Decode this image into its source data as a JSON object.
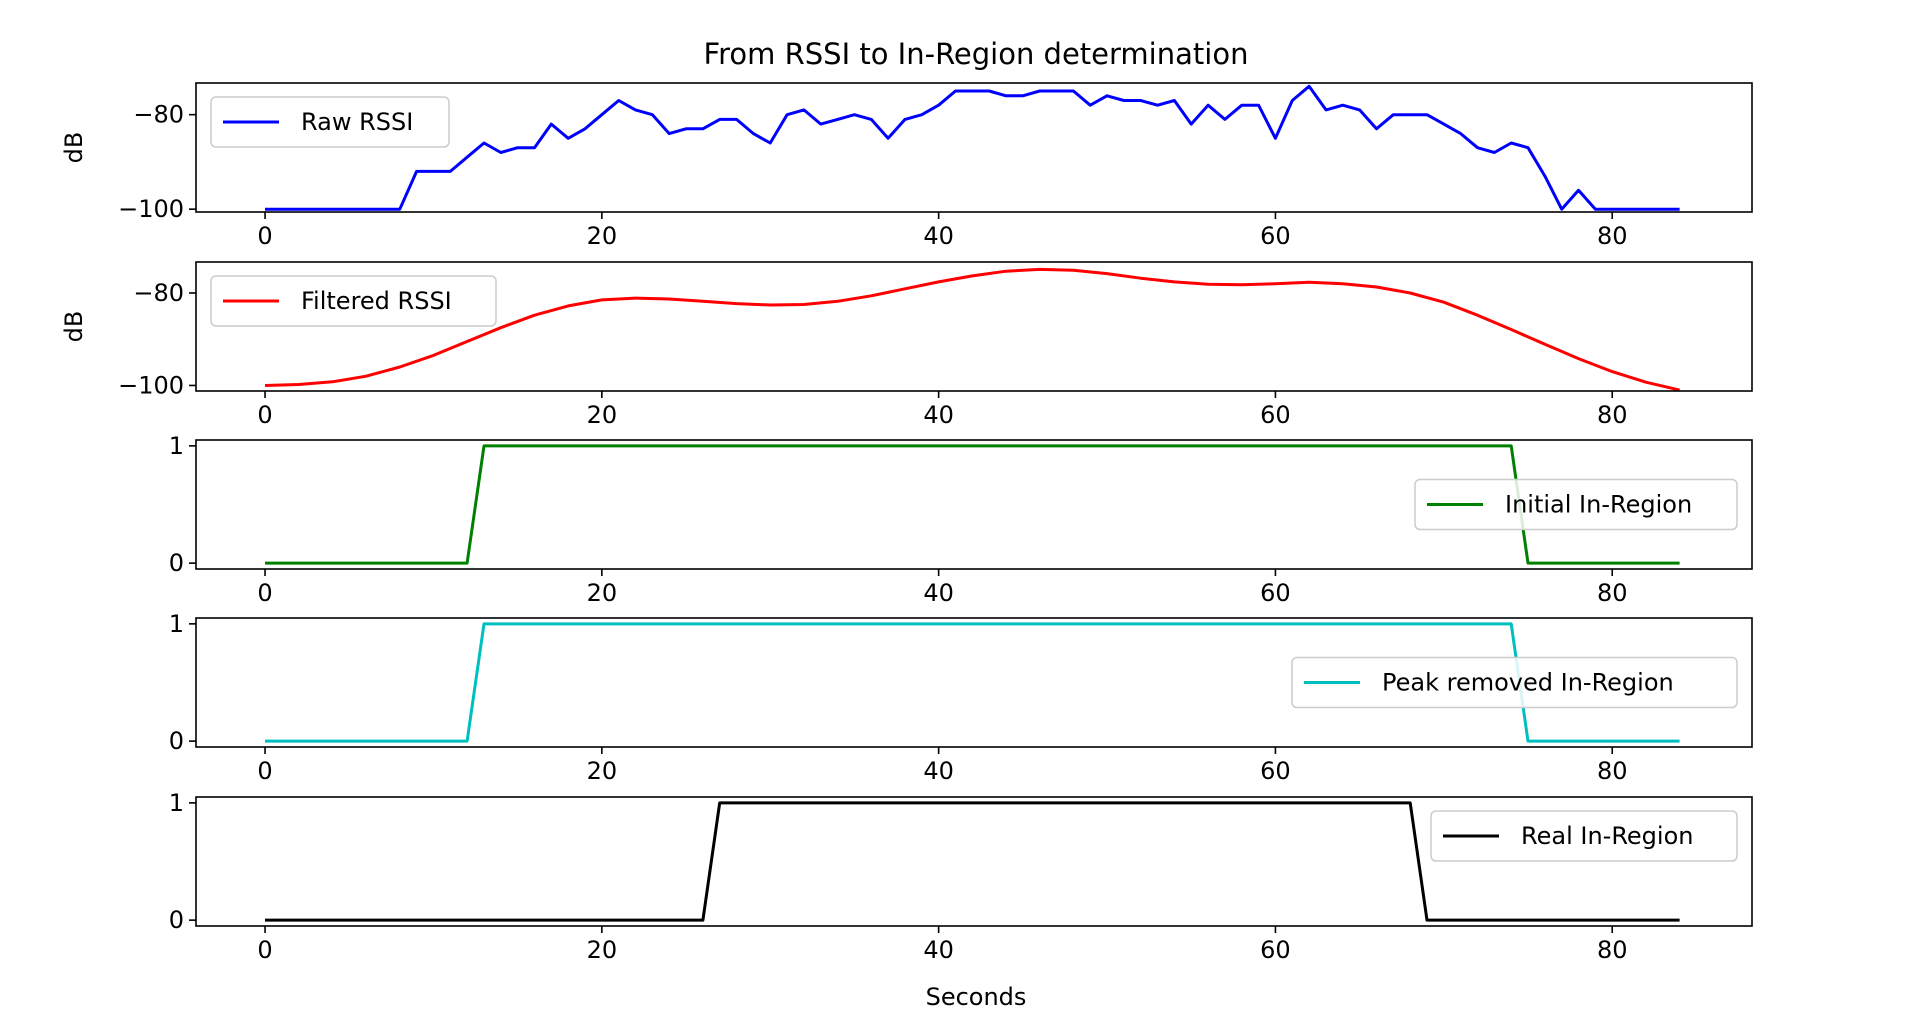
{
  "chart_data": {
    "type": "line",
    "title": "From RSSI to In-Region determination",
    "xlabel": "Seconds",
    "xlim": [
      -4.1,
      88.3
    ],
    "xticks": [
      0,
      20,
      40,
      60,
      80
    ],
    "subplots": [
      {
        "ylabel": "dB",
        "ylim": [
          -100.6,
          -73.3
        ],
        "yticks": [
          -80,
          -100
        ],
        "legend_loc": "upper left",
        "series": [
          {
            "name": "Raw RSSI",
            "color": "#0000ff",
            "x": [
              0,
              8,
              9,
              11,
              12,
              13,
              14,
              15,
              16,
              17,
              18,
              19,
              20,
              21,
              22,
              23,
              24,
              25,
              26,
              27,
              28,
              29,
              30,
              31,
              32,
              33,
              34,
              35,
              36,
              37,
              38,
              39,
              40,
              41,
              42,
              43,
              44,
              45,
              46,
              47,
              48,
              49,
              50,
              51,
              52,
              53,
              54,
              55,
              56,
              57,
              58,
              59,
              60,
              61,
              62,
              63,
              64,
              65,
              66,
              67,
              68,
              69,
              70,
              71,
              72,
              73,
              74,
              75,
              76,
              77,
              78,
              79,
              80,
              84
            ],
            "y": [
              -100,
              -100,
              -92,
              -92,
              -89,
              -86,
              -88,
              -87,
              -87,
              -82,
              -85,
              -83,
              -80,
              -77,
              -79,
              -80,
              -84,
              -83,
              -83,
              -81,
              -81,
              -84,
              -86,
              -80,
              -79,
              -82,
              -81,
              -80,
              -81,
              -85,
              -81,
              -80,
              -78,
              -75,
              -75,
              -75,
              -76,
              -76,
              -75,
              -75,
              -75,
              -78,
              -76,
              -77,
              -77,
              -78,
              -77,
              -82,
              -78,
              -81,
              -78,
              -78,
              -85,
              -77,
              -74,
              -79,
              -78,
              -79,
              -83,
              -80,
              -80,
              -80,
              -82,
              -84,
              -87,
              -88,
              -86,
              -87,
              -93,
              -100,
              -96,
              -100,
              -100,
              -100
            ]
          }
        ]
      },
      {
        "ylabel": "dB",
        "ylim": [
          -101.2,
          -73.3
        ],
        "yticks": [
          -80,
          -100
        ],
        "legend_loc": "upper left",
        "series": [
          {
            "name": "Filtered RSSI",
            "color": "#ff0000",
            "x": [
              0,
              2,
              4,
              6,
              8,
              10,
              12,
              14,
              16,
              18,
              20,
              22,
              24,
              26,
              28,
              30,
              32,
              34,
              36,
              38,
              40,
              42,
              44,
              46,
              48,
              50,
              52,
              54,
              56,
              58,
              60,
              62,
              64,
              66,
              68,
              70,
              72,
              74,
              76,
              78,
              80,
              82,
              84
            ],
            "y": [
              -100,
              -99.8,
              -99.2,
              -98,
              -96,
              -93.5,
              -90.5,
              -87.5,
              -84.8,
              -82.8,
              -81.5,
              -81.1,
              -81.3,
              -81.8,
              -82.3,
              -82.6,
              -82.5,
              -81.8,
              -80.6,
              -79.1,
              -77.6,
              -76.3,
              -75.3,
              -74.9,
              -75.1,
              -75.8,
              -76.8,
              -77.6,
              -78.1,
              -78.2,
              -78,
              -77.7,
              -78,
              -78.7,
              -80,
              -82,
              -84.8,
              -87.9,
              -91.1,
              -94.2,
              -97,
              -99.3,
              -101
            ]
          }
        ]
      },
      {
        "ylabel": "",
        "ylim": [
          -0.05,
          1.05
        ],
        "yticks": [
          1,
          0
        ],
        "legend_loc": "center right",
        "series": [
          {
            "name": "Initial In-Region",
            "color": "#008000",
            "x": [
              0,
              12,
              13,
              74,
              75,
              84
            ],
            "y": [
              0,
              0,
              1,
              1,
              0,
              0
            ]
          }
        ]
      },
      {
        "ylabel": "",
        "ylim": [
          -0.05,
          1.05
        ],
        "yticks": [
          1,
          0
        ],
        "legend_loc": "center right",
        "series": [
          {
            "name": "Peak removed In-Region",
            "color": "#00bfbf",
            "x": [
              0,
              12,
              13,
              74,
              75,
              84
            ],
            "y": [
              0,
              0,
              1,
              1,
              0,
              0
            ]
          }
        ]
      },
      {
        "ylabel": "",
        "ylim": [
          -0.05,
          1.05
        ],
        "yticks": [
          1,
          0
        ],
        "legend_loc": "upper right",
        "series": [
          {
            "name": "Real In-Region",
            "color": "#000000",
            "x": [
              0,
              26,
              27,
              68,
              69,
              84
            ],
            "y": [
              0,
              0,
              1,
              1,
              0,
              0
            ]
          }
        ]
      }
    ]
  }
}
